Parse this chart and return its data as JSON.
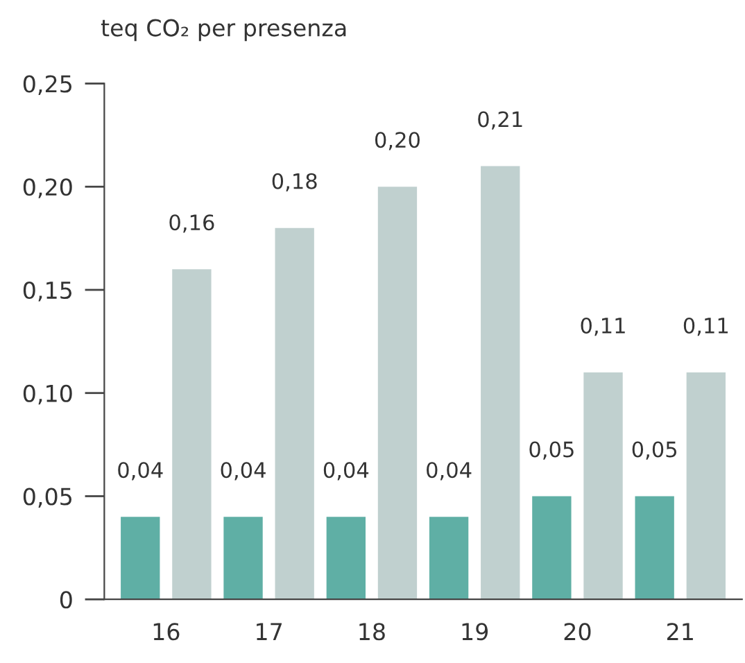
{
  "chart_data": {
    "type": "bar",
    "ylabel": "teq CO₂ per presenza",
    "categories": [
      "16",
      "17",
      "18",
      "19",
      "20",
      "21"
    ],
    "series": [
      {
        "color": "#5fafa5",
        "values": [
          0.04,
          0.04,
          0.04,
          0.04,
          0.05,
          0.05
        ],
        "value_labels": [
          "0,04",
          "0,04",
          "0,04",
          "0,04",
          "0,05",
          "0,05"
        ]
      },
      {
        "color": "#c0d0cf",
        "values": [
          0.16,
          0.18,
          0.2,
          0.21,
          0.11,
          0.11
        ],
        "value_labels": [
          "0,16",
          "0,18",
          "0,20",
          "0,21",
          "0,11",
          "0,11"
        ]
      }
    ],
    "ylim": [
      0,
      0.25
    ],
    "yticks": [
      {
        "value": 0,
        "label": "0"
      },
      {
        "value": 0.05,
        "label": "0,05"
      },
      {
        "value": 0.1,
        "label": "0,10"
      },
      {
        "value": 0.15,
        "label": "0,15"
      },
      {
        "value": 0.2,
        "label": "0,20"
      },
      {
        "value": 0.25,
        "label": "0,25"
      }
    ],
    "grid": false,
    "legend": false
  }
}
